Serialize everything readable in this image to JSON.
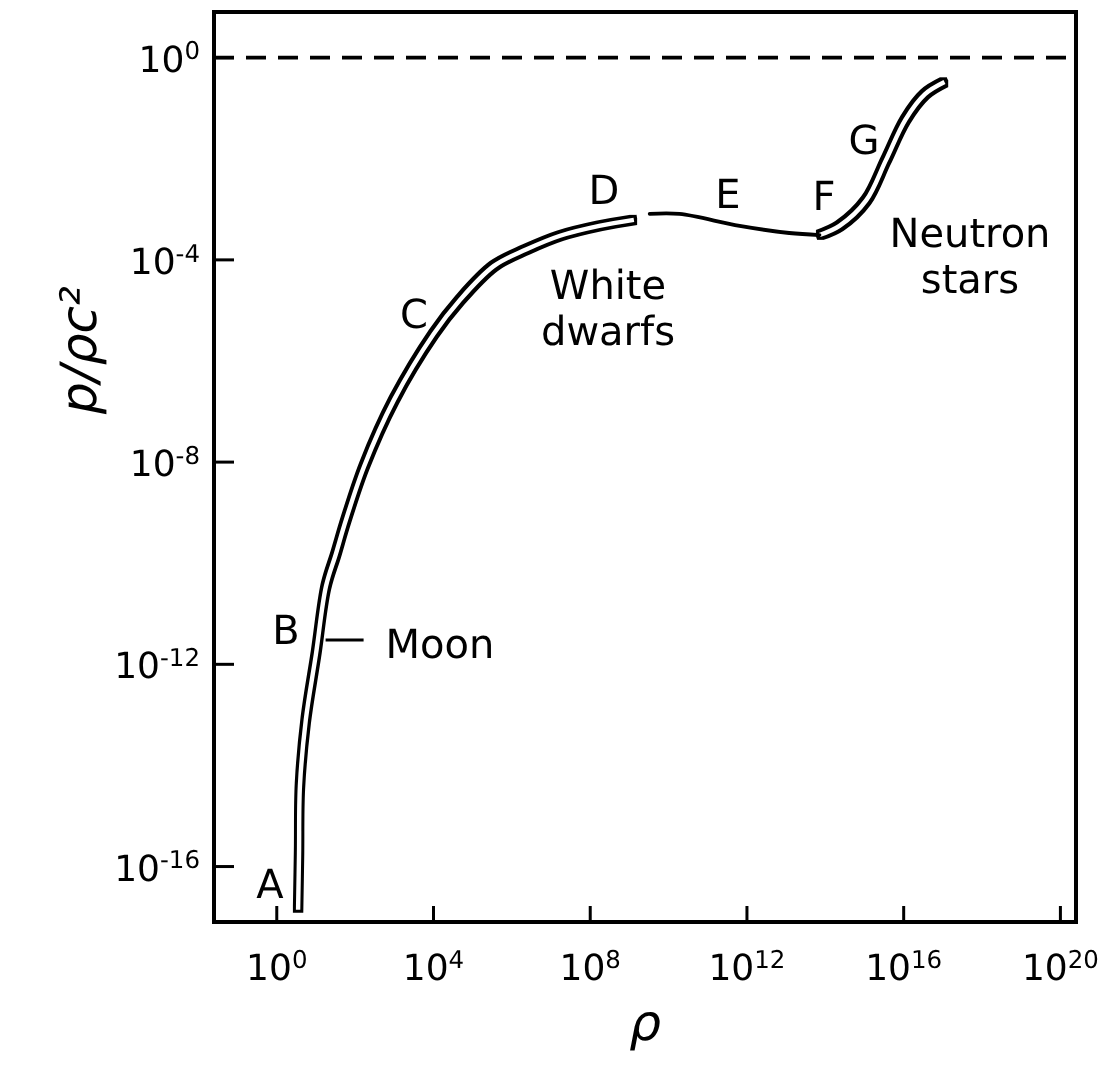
{
  "chart_data": {
    "type": "line",
    "xlabel": "ρ",
    "ylabel": "p/ρc²",
    "log": "xy",
    "xlim": [
      0.025,
      2.5e+20
    ],
    "ylim": [
      8e-18,
      8
    ],
    "xticks": [
      {
        "value": 1,
        "label": "10$^{0}$"
      },
      {
        "value": 10000.0,
        "label": "10$^{4}$"
      },
      {
        "value": 100000000.0,
        "label": "10$^{8}$"
      },
      {
        "value": 1000000000000.0,
        "label": "10$^{12}$"
      },
      {
        "value": 1e+16,
        "label": "10$^{16}$"
      },
      {
        "value": 1e+20,
        "label": "10$^{20}$"
      }
    ],
    "yticks": [
      {
        "value": 1,
        "label": "10$^{0}$"
      },
      {
        "value": 0.0001,
        "label": "10$^{-4}$"
      },
      {
        "value": 1e-08,
        "label": "10$^{-8}$"
      },
      {
        "value": 1e-12,
        "label": "10$^{-12}$"
      },
      {
        "value": 1e-16,
        "label": "10$^{-16}$"
      }
    ],
    "series": [
      {
        "color": "#000000",
        "x": [
          3.5,
          3.7,
          3.9,
          5.5,
          10,
          18,
          32,
          58,
          170,
          980,
          10000.0,
          47000.0,
          350000.0,
          2300000.0,
          17000000.0,
          170000000.0,
          1300000000.0
        ],
        "values": [
          1.4e-17,
          1.8e-16,
          3.9e-15,
          7.9e-14,
          1.6e-12,
          3.5e-11,
          1.5e-10,
          7.1e-10,
          8.3e-09,
          1.7e-07,
          3.4e-06,
          1.6e-05,
          7.6e-05,
          0.00016,
          0.0003,
          0.00047,
          0.00062
        ]
      },
      {
        "color": "#000000",
        "x": [
          3300000000.0,
          19000000000.0,
          650000000000.0,
          12000000000000.0,
          71000000000000.0
        ],
        "values": [
          0.00081,
          0.00081,
          0.00047,
          0.00034,
          0.00031
        ]
      },
      {
        "color": "#000000",
        "x": [
          71000000000000.0,
          230000000000000.0,
          1100000000000000.0,
          3500000000000000.0,
          1.1e+16,
          3.5e+16,
          1.1e+17
        ],
        "values": [
          0.00031,
          0.00047,
          0.0015,
          0.0093,
          0.059,
          0.19,
          0.33
        ]
      }
    ],
    "ref_lines": [
      {
        "axis": "y",
        "value": 1,
        "line_style": "dashed",
        "color": "#000000"
      }
    ],
    "annotations": [
      "A",
      "B",
      "C",
      "D",
      "E",
      "F",
      "G",
      "Moon",
      "White dwarfs",
      "Neutron stars"
    ]
  }
}
